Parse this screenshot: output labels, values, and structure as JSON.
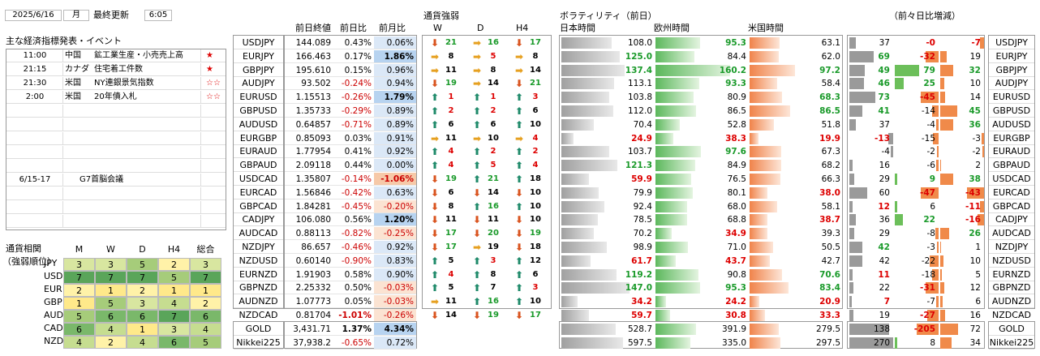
{
  "header": {
    "date": "2025/6/16",
    "weekday": "月",
    "updated_label": "最終更新",
    "time": "6:05"
  },
  "events": {
    "title": "主な経済指標発表・イベント",
    "rows": [
      {
        "time": "11:00",
        "country": "中国",
        "name": "鉱工業生産・小売売上高",
        "stars": "★"
      },
      {
        "time": "21:15",
        "country": "カナダ",
        "name": "住宅着工件数",
        "stars": "★"
      },
      {
        "time": "21:30",
        "country": "米国",
        "name": "NY連銀景気指数",
        "stars": "☆☆"
      },
      {
        "time": "2:00",
        "country": "米国",
        "name": "20年債入札",
        "stars": "☆☆"
      },
      {
        "time": "",
        "country": "",
        "name": "",
        "stars": ""
      },
      {
        "time": "",
        "country": "",
        "name": "",
        "stars": ""
      },
      {
        "time": "",
        "country": "",
        "name": "",
        "stars": ""
      },
      {
        "time": "",
        "country": "",
        "name": "",
        "stars": ""
      },
      {
        "time": "",
        "country": "",
        "name": "",
        "stars": ""
      },
      {
        "time": "6/15-17",
        "country": "",
        "name": "G7首脳会議",
        "stars": ""
      },
      {
        "time": "",
        "country": "",
        "name": "",
        "stars": ""
      },
      {
        "time": "",
        "country": "",
        "name": "",
        "stars": ""
      },
      {
        "time": "",
        "country": "",
        "name": "",
        "stars": ""
      }
    ]
  },
  "correlation": {
    "title_line1": "通貨相関",
    "title_line2": "（強弱順位）",
    "columns": [
      "M",
      "W",
      "D",
      "H4",
      "総合"
    ],
    "rows": [
      {
        "ccy": "JPY",
        "vals": [
          3,
          3,
          5,
          2,
          3
        ]
      },
      {
        "ccy": "USD",
        "vals": [
          7,
          7,
          7,
          5,
          7
        ]
      },
      {
        "ccy": "EUR",
        "vals": [
          2,
          1,
          2,
          1,
          1
        ]
      },
      {
        "ccy": "GBP",
        "vals": [
          1,
          5,
          3,
          4,
          2
        ]
      },
      {
        "ccy": "AUD",
        "vals": [
          5,
          6,
          6,
          7,
          6
        ]
      },
      {
        "ccy": "CAD",
        "vals": [
          6,
          4,
          1,
          3,
          4
        ]
      },
      {
        "ccy": "NZD",
        "vals": [
          4,
          2,
          4,
          6,
          5
        ]
      }
    ],
    "colors": {
      "1": "#ffe98a",
      "2": "#fff2a8",
      "3": "#d8e6a0",
      "4": "#c6dd90",
      "5": "#a6cc7a",
      "6": "#7ab86a",
      "7": "#5aa55a"
    }
  },
  "columns": {
    "close": "前日終値",
    "dchg": "前日比",
    "mchg": "前月比",
    "strength": "通貨強弱",
    "s_w": "W",
    "s_d": "D",
    "s_h4": "H4",
    "vol": "ボラティリティ（前日）",
    "vol_jp": "日本時間",
    "vol_eu": "欧州時間",
    "vol_us": "米国時間",
    "diff": "（前々日比増減）"
  },
  "rows": [
    {
      "pair": "USDJPY",
      "close": "144.089",
      "d": "0.43%",
      "m": "0.06%",
      "dneg": false,
      "mneg": false,
      "mb": false,
      "db": false,
      "w": [
        "dn",
        21,
        "g"
      ],
      "dd": [
        "fl",
        16,
        "g"
      ],
      "h4": [
        "dn",
        17,
        "g"
      ],
      "jp": "108.0",
      "eu": "95.3",
      "us": "63.1",
      "jpw": 0.55,
      "euw": 0.49,
      "usw": 0.33,
      "euc": "green",
      "jpc": "",
      "usc": "",
      "x1": "37",
      "x2": "-0",
      "x3": "-7",
      "x1c": "",
      "x2c": "red",
      "x3c": "red",
      "x1w": 0.15,
      "x2w": 0.0,
      "x3w": 0.1
    },
    {
      "pair": "EURJPY",
      "close": "166.463",
      "d": "0.17%",
      "m": "1.86%",
      "dneg": false,
      "mneg": false,
      "mb": true,
      "db": false,
      "w": [
        "fl",
        8,
        "b"
      ],
      "dd": [
        "fl",
        5,
        "r"
      ],
      "h4": [
        "fl",
        8,
        "b"
      ],
      "jp": "125.0",
      "eu": "84.4",
      "us": "62.0",
      "jpw": 0.64,
      "euw": 0.43,
      "usw": 0.32,
      "euc": "",
      "jpc": "green",
      "usc": "",
      "x1": "69",
      "x2": "-32",
      "x3": "19",
      "x1c": "green",
      "x2c": "red",
      "x3c": "",
      "x1w": 0.55,
      "x2w": 0.3,
      "x3w": 0.15
    },
    {
      "pair": "GBPJPY",
      "close": "195.610",
      "d": "0.15%",
      "m": "0.96%",
      "dneg": false,
      "mneg": false,
      "mb": false,
      "db": false,
      "w": [
        "fl",
        11,
        "b"
      ],
      "dd": [
        "fl",
        8,
        "b"
      ],
      "h4": [
        "fl",
        14,
        "b"
      ],
      "jp": "137.4",
      "eu": "160.2",
      "us": "97.2",
      "jpw": 0.7,
      "euw": 0.82,
      "usw": 0.5,
      "euc": "green",
      "jpc": "green",
      "usc": "green",
      "x1": "49",
      "x2": "79",
      "x3": "32",
      "x1c": "green",
      "x2c": "green",
      "x3c": "green",
      "x1w": 0.35,
      "x2w": 0.55,
      "x3w": 0.3
    },
    {
      "pair": "AUDJPY",
      "close": "93.502",
      "d": "-0.24%",
      "m": "0.94%",
      "dneg": true,
      "mneg": false,
      "mb": false,
      "db": false,
      "w": [
        "dn",
        19,
        "g"
      ],
      "dd": [
        "fl",
        14,
        "b"
      ],
      "h4": [
        "dn",
        21,
        "g"
      ],
      "jp": "113.1",
      "eu": "93.3",
      "us": "58.4",
      "jpw": 0.58,
      "euw": 0.48,
      "usw": 0.3,
      "euc": "green",
      "jpc": "",
      "usc": "",
      "x1": "46",
      "x2": "25",
      "x3": "10",
      "x1c": "green",
      "x2c": "green",
      "x3c": "",
      "x1w": 0.33,
      "x2w": 0.2,
      "x3w": 0.1
    },
    {
      "pair": "EURUSD",
      "close": "1.15513",
      "d": "-0.26%",
      "m": "1.79%",
      "dneg": true,
      "mneg": false,
      "mb": true,
      "db": false,
      "w": [
        "up",
        1,
        "r"
      ],
      "dd": [
        "up",
        1,
        "r"
      ],
      "h4": [
        "up",
        3,
        "r"
      ],
      "jp": "103.8",
      "eu": "80.9",
      "us": "68.3",
      "jpw": 0.53,
      "euw": 0.42,
      "usw": 0.36,
      "euc": "",
      "jpc": "",
      "usc": "green",
      "x1": "73",
      "x2": "-45",
      "x3": "14",
      "x1c": "green",
      "x2c": "red",
      "x3c": "",
      "x1w": 0.6,
      "x2w": 0.4,
      "x3w": 0.12
    },
    {
      "pair": "GBPUSD",
      "close": "1.35733",
      "d": "-0.29%",
      "m": "0.89%",
      "dneg": true,
      "mneg": false,
      "mb": false,
      "db": false,
      "w": [
        "up",
        2,
        "r"
      ],
      "dd": [
        "up",
        2,
        "r"
      ],
      "h4": [
        "up",
        6,
        "b"
      ],
      "jp": "112.0",
      "eu": "86.5",
      "us": "86.5",
      "jpw": 0.57,
      "euw": 0.45,
      "usw": 0.45,
      "euc": "",
      "jpc": "",
      "usc": "green",
      "x1": "41",
      "x2": "-14",
      "x3": "45",
      "x1c": "green",
      "x2c": "",
      "x3c": "green",
      "x1w": 0.3,
      "x2w": 0.15,
      "x3w": 0.38
    },
    {
      "pair": "AUDUSD",
      "close": "0.64857",
      "d": "-0.71%",
      "m": "0.89%",
      "dneg": true,
      "mneg": false,
      "mb": false,
      "db": false,
      "w": [
        "up",
        6,
        "b"
      ],
      "dd": [
        "up",
        6,
        "b"
      ],
      "h4": [
        "up",
        10,
        "b"
      ],
      "jp": "70.4",
      "eu": "52.8",
      "us": "51.8",
      "jpw": 0.36,
      "euw": 0.27,
      "usw": 0.27,
      "euc": "",
      "jpc": "",
      "usc": "",
      "x1": "37",
      "x2": "-4",
      "x3": "36",
      "x1c": "",
      "x2c": "",
      "x3c": "green",
      "x1w": 0.15,
      "x2w": 0.05,
      "x3w": 0.3
    },
    {
      "pair": "EURGBP",
      "close": "0.85093",
      "d": "0.03%",
      "m": "0.91%",
      "dneg": false,
      "mneg": false,
      "mb": false,
      "db": false,
      "w": [
        "fl",
        11,
        "b"
      ],
      "dd": [
        "fl",
        10,
        "b"
      ],
      "h4": [
        "fl",
        4,
        "r"
      ],
      "jp": "24.9",
      "eu": "38.3",
      "us": "19.9",
      "jpw": 0.13,
      "euw": 0.2,
      "usw": 0.1,
      "euc": "red",
      "jpc": "red",
      "usc": "red",
      "x1": "-13",
      "x2": "-15",
      "x3": "-3",
      "x1c": "red",
      "x2c": "",
      "x3c": "",
      "x1w": 0.12,
      "x2w": 0.13,
      "x3w": 0.05
    },
    {
      "pair": "EURAUD",
      "close": "1.77954",
      "d": "0.41%",
      "m": "0.92%",
      "dneg": false,
      "mneg": false,
      "mb": false,
      "db": false,
      "w": [
        "up",
        4,
        "r"
      ],
      "dd": [
        "up",
        2,
        "r"
      ],
      "h4": [
        "up",
        2,
        "r"
      ],
      "jp": "103.7",
      "eu": "97.6",
      "us": "67.3",
      "jpw": 0.53,
      "euw": 0.5,
      "usw": 0.35,
      "euc": "green",
      "jpc": "",
      "usc": "",
      "x1": "-4",
      "x2": "-2",
      "x3": "-2",
      "x1c": "",
      "x2c": "",
      "x3c": "",
      "x1w": 0.05,
      "x2w": 0.03,
      "x3w": 0.03
    },
    {
      "pair": "GBPAUD",
      "close": "2.09118",
      "d": "0.44%",
      "m": "0.00%",
      "dneg": false,
      "mneg": false,
      "mb": false,
      "db": false,
      "w": [
        "up",
        4,
        "r"
      ],
      "dd": [
        "up",
        5,
        "r"
      ],
      "h4": [
        "up",
        4,
        "r"
      ],
      "jp": "121.3",
      "eu": "84.9",
      "us": "68.2",
      "jpw": 0.62,
      "euw": 0.44,
      "usw": 0.35,
      "euc": "",
      "jpc": "green",
      "usc": "",
      "x1": "16",
      "x2": "-6",
      "x3": "2",
      "x1c": "",
      "x2c": "",
      "x3c": "",
      "x1w": 0.08,
      "x2w": 0.05,
      "x3w": 0.02
    },
    {
      "pair": "USDCAD",
      "close": "1.35807",
      "d": "-0.14%",
      "m": "-1.06%",
      "dneg": true,
      "mneg": true,
      "mb": true,
      "db": false,
      "w": [
        "dn",
        19,
        "g"
      ],
      "dd": [
        "up",
        21,
        "g"
      ],
      "h4": [
        "up",
        18,
        "b"
      ],
      "jp": "59.9",
      "eu": "76.5",
      "us": "66.3",
      "jpw": 0.3,
      "euw": 0.39,
      "usw": 0.34,
      "euc": "",
      "jpc": "red",
      "usc": "",
      "x1": "29",
      "x2": "9",
      "x3": "38",
      "x1c": "",
      "x2c": "green",
      "x3c": "green",
      "x1w": 0.12,
      "x2w": 0.05,
      "x3w": 0.3
    },
    {
      "pair": "EURCAD",
      "close": "1.56846",
      "d": "-0.42%",
      "m": "0.63%",
      "dneg": true,
      "mneg": false,
      "mb": false,
      "db": false,
      "w": [
        "dn",
        6,
        "b"
      ],
      "dd": [
        "dn",
        14,
        "b"
      ],
      "h4": [
        "dn",
        10,
        "b"
      ],
      "jp": "79.9",
      "eu": "80.1",
      "us": "38.0",
      "jpw": 0.41,
      "euw": 0.41,
      "usw": 0.2,
      "euc": "",
      "jpc": "",
      "usc": "red",
      "x1": "60",
      "x2": "-47",
      "x3": "-43",
      "x1c": "",
      "x2c": "red",
      "x3c": "red",
      "x1w": 0.4,
      "x2w": 0.4,
      "x3w": 0.38
    },
    {
      "pair": "GBPCAD",
      "close": "1.84281",
      "d": "-0.45%",
      "m": "-0.20%",
      "dneg": true,
      "mneg": true,
      "mb": false,
      "db": false,
      "w": [
        "dn",
        8,
        "b"
      ],
      "dd": [
        "up",
        16,
        "g"
      ],
      "h4": [
        "up",
        10,
        "b"
      ],
      "jp": "92.4",
      "eu": "68.0",
      "us": "58.1",
      "jpw": 0.47,
      "euw": 0.35,
      "usw": 0.3,
      "euc": "",
      "jpc": "",
      "usc": "",
      "x1": "12",
      "x2": "6",
      "x3": "-11",
      "x1c": "red",
      "x2c": "",
      "x3c": "red",
      "x1w": 0.08,
      "x2w": 0.05,
      "x3w": 0.1
    },
    {
      "pair": "CADJPY",
      "close": "106.080",
      "d": "0.56%",
      "m": "1.20%",
      "dneg": false,
      "mneg": false,
      "mb": true,
      "db": false,
      "w": [
        "dn",
        11,
        "b"
      ],
      "dd": [
        "dn",
        11,
        "b"
      ],
      "h4": [
        "dn",
        10,
        "b"
      ],
      "jp": "78.5",
      "eu": "68.8",
      "us": "38.7",
      "jpw": 0.4,
      "euw": 0.35,
      "usw": 0.2,
      "euc": "",
      "jpc": "",
      "usc": "red",
      "x1": "36",
      "x2": "22",
      "x3": "-16",
      "x1c": "",
      "x2c": "green",
      "x3c": "red",
      "x1w": 0.15,
      "x2w": 0.18,
      "x3w": 0.15
    },
    {
      "pair": "AUDCAD",
      "close": "0.88113",
      "d": "-0.82%",
      "m": "-0.25%",
      "dneg": true,
      "mneg": true,
      "mb": false,
      "db": false,
      "w": [
        "dn",
        17,
        "g"
      ],
      "dd": [
        "dn",
        20,
        "g"
      ],
      "h4": [
        "dn",
        19,
        "g"
      ],
      "jp": "70.2",
      "eu": "34.9",
      "us": "39.3",
      "jpw": 0.36,
      "euw": 0.18,
      "usw": 0.2,
      "euc": "red",
      "jpc": "",
      "usc": "",
      "x1": "29",
      "x2": "-8",
      "x3": "26",
      "x1c": "",
      "x2c": "",
      "x3c": "green",
      "x1w": 0.12,
      "x2w": 0.07,
      "x3w": 0.2
    },
    {
      "pair": "NZDJPY",
      "close": "86.657",
      "d": "-0.46%",
      "m": "0.92%",
      "dneg": true,
      "mneg": false,
      "mb": false,
      "db": false,
      "w": [
        "dn",
        17,
        "g"
      ],
      "dd": [
        "fl",
        19,
        "b"
      ],
      "h4": [
        "dn",
        18,
        "b"
      ],
      "jp": "98.9",
      "eu": "71.0",
      "us": "50.5",
      "jpw": 0.5,
      "euw": 0.36,
      "usw": 0.26,
      "euc": "",
      "jpc": "",
      "usc": "",
      "x1": "42",
      "x2": "-3",
      "x3": "1",
      "x1c": "green",
      "x2c": "",
      "x3c": "",
      "x1w": 0.3,
      "x2w": 0.03,
      "x3w": 0.01
    },
    {
      "pair": "NZDUSD",
      "close": "0.60140",
      "d": "-0.90%",
      "m": "0.83%",
      "dneg": true,
      "mneg": false,
      "mb": false,
      "db": false,
      "w": [
        "up",
        5,
        "b"
      ],
      "dd": [
        "up",
        3,
        "r"
      ],
      "h4": [
        "up",
        12,
        "b"
      ],
      "jp": "61.7",
      "eu": "43.7",
      "us": "42.7",
      "jpw": 0.32,
      "euw": 0.22,
      "usw": 0.22,
      "euc": "red",
      "jpc": "red",
      "usc": "",
      "x1": "42",
      "x2": "-22",
      "x3": "10",
      "x1c": "",
      "x2c": "",
      "x3c": "",
      "x1w": 0.3,
      "x2w": 0.2,
      "x3w": 0.08
    },
    {
      "pair": "EURNZD",
      "close": "1.91903",
      "d": "0.58%",
      "m": "0.90%",
      "dneg": false,
      "mneg": false,
      "mb": false,
      "db": false,
      "w": [
        "up",
        4,
        "r"
      ],
      "dd": [
        "up",
        8,
        "b"
      ],
      "h4": [
        "up",
        6,
        "b"
      ],
      "jp": "119.2",
      "eu": "90.8",
      "us": "70.6",
      "jpw": 0.61,
      "euw": 0.47,
      "usw": 0.36,
      "euc": "",
      "jpc": "green",
      "usc": "green",
      "x1": "11",
      "x2": "-18",
      "x3": "5",
      "x1c": "red",
      "x2c": "",
      "x3c": "",
      "x1w": 0.07,
      "x2w": 0.15,
      "x3w": 0.04
    },
    {
      "pair": "GBPNZD",
      "close": "2.25332",
      "d": "0.50%",
      "m": "-0.03%",
      "dneg": false,
      "mneg": true,
      "mb": false,
      "db": false,
      "w": [
        "up",
        5,
        "b"
      ],
      "dd": [
        "up",
        7,
        "b"
      ],
      "h4": [
        "up",
        3,
        "r"
      ],
      "jp": "147.0",
      "eu": "95.3",
      "us": "83.4",
      "jpw": 0.75,
      "euw": 0.49,
      "usw": 0.43,
      "euc": "green",
      "jpc": "green",
      "usc": "green",
      "x1": "22",
      "x2": "-31",
      "x3": "12",
      "x1c": "",
      "x2c": "red",
      "x3c": "",
      "x1w": 0.1,
      "x2w": 0.3,
      "x3w": 0.1
    },
    {
      "pair": "AUDNZD",
      "close": "1.07773",
      "d": "0.05%",
      "m": "-0.03%",
      "dneg": false,
      "mneg": true,
      "mb": false,
      "db": false,
      "w": [
        "fl",
        11,
        "b"
      ],
      "dd": [
        "up",
        16,
        "g"
      ],
      "h4": [
        "up",
        10,
        "b"
      ],
      "jp": "34.2",
      "eu": "24.2",
      "us": "20.9",
      "jpw": 0.18,
      "euw": 0.12,
      "usw": 0.11,
      "euc": "red",
      "jpc": "red",
      "usc": "red",
      "x1": "7",
      "x2": "-7",
      "x3": "6",
      "x1c": "red",
      "x2c": "",
      "x3c": "",
      "x1w": 0.05,
      "x2w": 0.06,
      "x3w": 0.05
    },
    {
      "pair": "NZDCAD",
      "close": "0.81704",
      "d": "-1.01%",
      "m": "-0.26%",
      "dneg": true,
      "mneg": true,
      "mb": false,
      "db": true,
      "w": [
        "dn",
        14,
        "b"
      ],
      "dd": [
        "dn",
        19,
        "g"
      ],
      "h4": [
        "dn",
        17,
        "g"
      ],
      "jp": "59.7",
      "eu": "30.8",
      "us": "33.3",
      "jpw": 0.3,
      "euw": 0.16,
      "usw": 0.17,
      "euc": "red",
      "jpc": "red",
      "usc": "red",
      "x1": "19",
      "x2": "-27",
      "x3": "16",
      "x1c": "",
      "x2c": "red",
      "x3c": "",
      "x1w": 0.09,
      "x2w": 0.25,
      "x3w": 0.12
    }
  ],
  "extra": [
    {
      "pair": "GOLD",
      "close": "3,431.71",
      "d": "1.37%",
      "m": "4.34%",
      "dneg": false,
      "mneg": false,
      "mb": true,
      "db": true,
      "jp": "528.7",
      "eu": "391.9",
      "us": "279.5",
      "jpw": 0.6,
      "euw": 0.45,
      "usw": 0.32,
      "x1": "138",
      "x2": "-205",
      "x3": "72",
      "x1c": "",
      "x2c": "red",
      "x3c": "",
      "x1w": 0.9,
      "x2w": 0.5,
      "x3w": 0.4
    },
    {
      "pair": "Nikkei225",
      "close": "37,938.2",
      "d": "-0.65%",
      "m": "0.72%",
      "dneg": true,
      "mneg": false,
      "mb": false,
      "db": false,
      "jp": "597.5",
      "eu": "335.0",
      "us": "297.5",
      "jpw": 0.68,
      "euw": 0.38,
      "usw": 0.34,
      "x1": "270",
      "x2": "8",
      "x3": "34",
      "x1c": "",
      "x2c": "",
      "x3c": "",
      "x1w": 1.0,
      "x2w": 0.05,
      "x3w": 0.25
    }
  ]
}
